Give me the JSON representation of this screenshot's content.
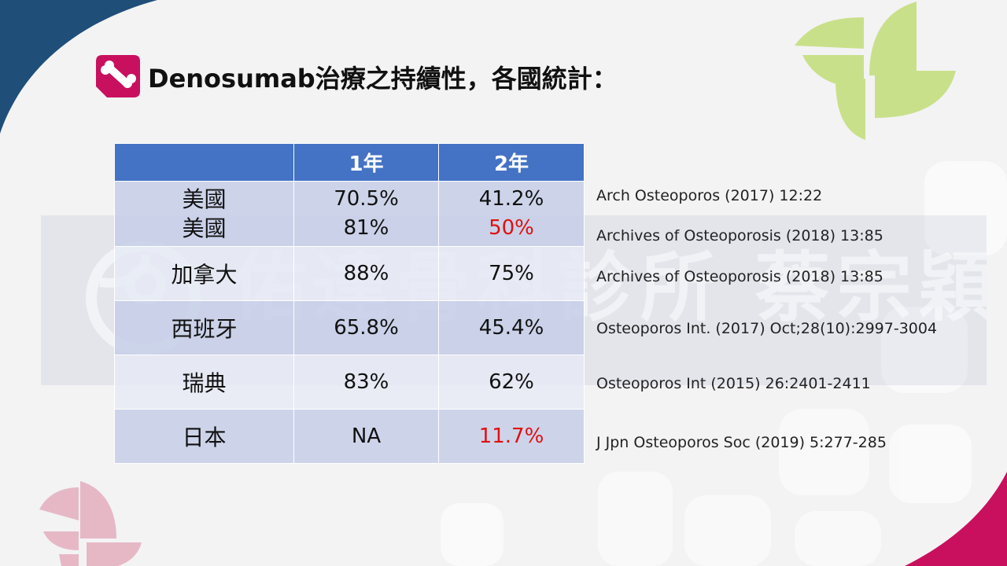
{
  "title": "Denosumab治療之持續性，各國統計：",
  "watermark_text": "佑達骨科診所 蔡宗穎",
  "colors": {
    "header_bg": "#4472c4",
    "row_dark": "#c6cee8",
    "row_light": "#e6eaf4",
    "highlight_red": "#e01010",
    "icon_magenta": "#c8105e",
    "corner_navy": "#1f4e79",
    "leaf_green": "#c9e08a",
    "leaf_pink": "#e6b8c6"
  },
  "table": {
    "headers": [
      "",
      "1年",
      "2年"
    ],
    "rows": [
      {
        "countries": [
          "美國",
          "美國"
        ],
        "year1": [
          "70.5%",
          "81%"
        ],
        "year2": [
          "41.2%",
          "50%"
        ],
        "sources": [
          "Arch Osteoporos (2017) 12:22",
          "Archives of Osteoporosis (2018) 13:85"
        ]
      },
      {
        "countries": [
          "加拿大"
        ],
        "year1": [
          "88%"
        ],
        "year2": [
          "75%"
        ],
        "sources": [
          "Archives of Osteoporosis (2018) 13:85"
        ]
      },
      {
        "countries": [
          "西班牙"
        ],
        "year1": [
          "65.8%"
        ],
        "year2": [
          "45.4%"
        ],
        "sources": [
          "Osteoporos Int. (2017) Oct;28(10):2997-3004"
        ]
      },
      {
        "countries": [
          "瑞典"
        ],
        "year1": [
          "83%"
        ],
        "year2": [
          "62%"
        ],
        "sources": [
          "Osteoporos Int (2015) 26:2401-2411"
        ]
      },
      {
        "countries": [
          "日本"
        ],
        "year1": [
          "NA"
        ],
        "year2": [
          "11.7%"
        ],
        "sources": [
          "J Jpn Osteoporos Soc (2019) 5:277-285"
        ]
      }
    ]
  }
}
